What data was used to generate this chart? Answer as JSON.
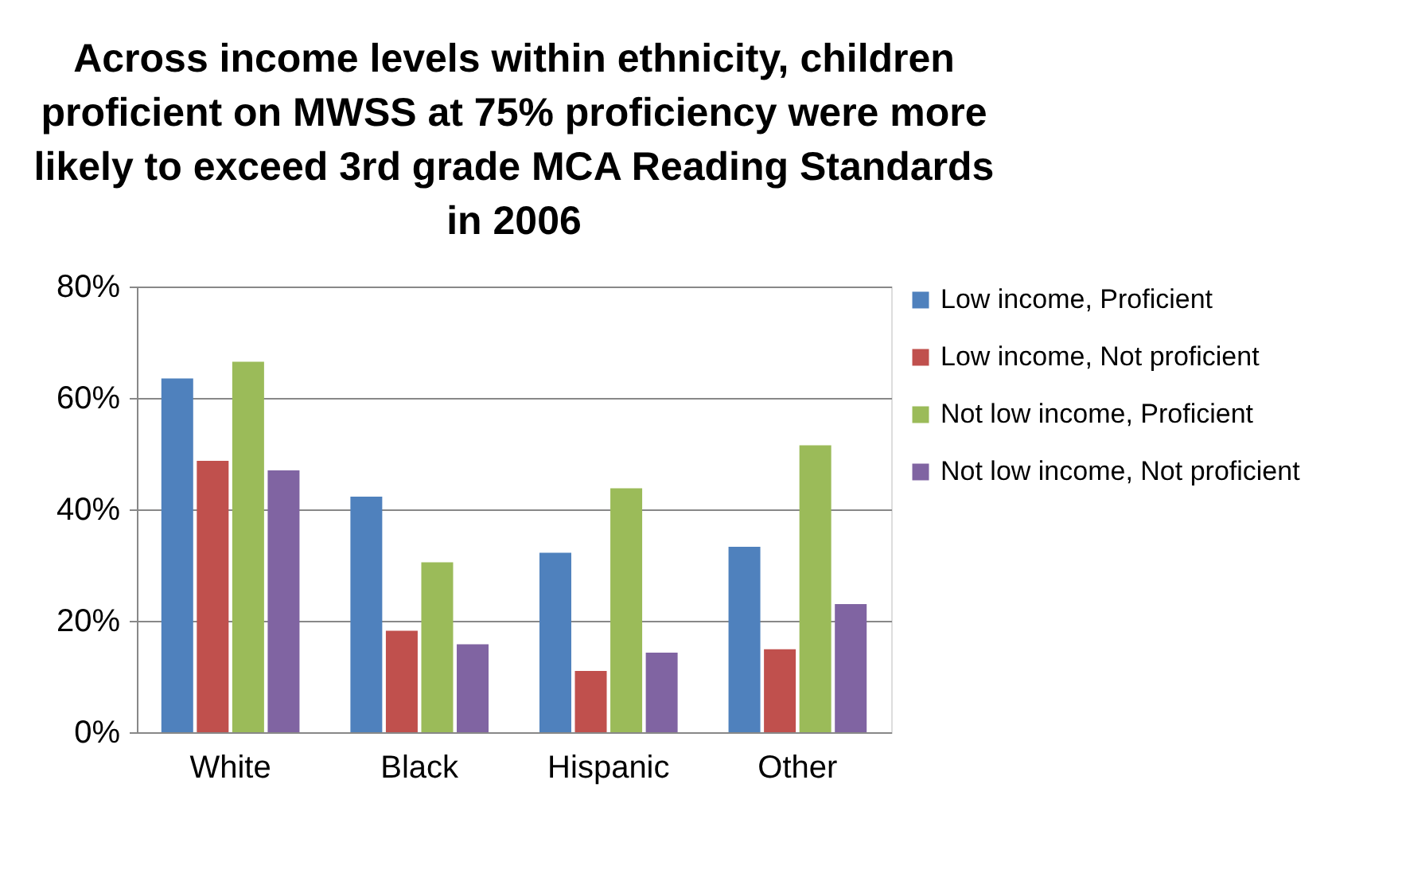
{
  "chart_data": {
    "type": "bar",
    "title": "Across income levels within ethnicity, children proficient on MWSS at 75% proficiency were more likely to exceed 3rd grade MCA Reading Standards in 2006",
    "categories": [
      "White",
      "Black",
      "Hispanic",
      "Other"
    ],
    "series": [
      {
        "name": "Low income, Proficient",
        "color": "#4f81bd",
        "values": [
          63.5,
          42.3,
          32.2,
          33.3
        ]
      },
      {
        "name": "Low income, Not proficient",
        "color": "#c0504d",
        "values": [
          48.7,
          18.2,
          11.0,
          14.9
        ]
      },
      {
        "name": "Not low income, Proficient",
        "color": "#9bbb59",
        "values": [
          66.5,
          30.5,
          43.8,
          51.5
        ]
      },
      {
        "name": "Not low income, Not proficient",
        "color": "#8064a2",
        "values": [
          47.0,
          15.8,
          14.3,
          23.0
        ]
      }
    ],
    "ylim": [
      0,
      80
    ],
    "yticks": [
      {
        "value": 0,
        "label": "0%"
      },
      {
        "value": 20,
        "label": "20%"
      },
      {
        "value": 40,
        "label": "40%"
      },
      {
        "value": 60,
        "label": "60%"
      },
      {
        "value": 80,
        "label": "80%"
      }
    ],
    "grid": "y",
    "legend": "right"
  }
}
